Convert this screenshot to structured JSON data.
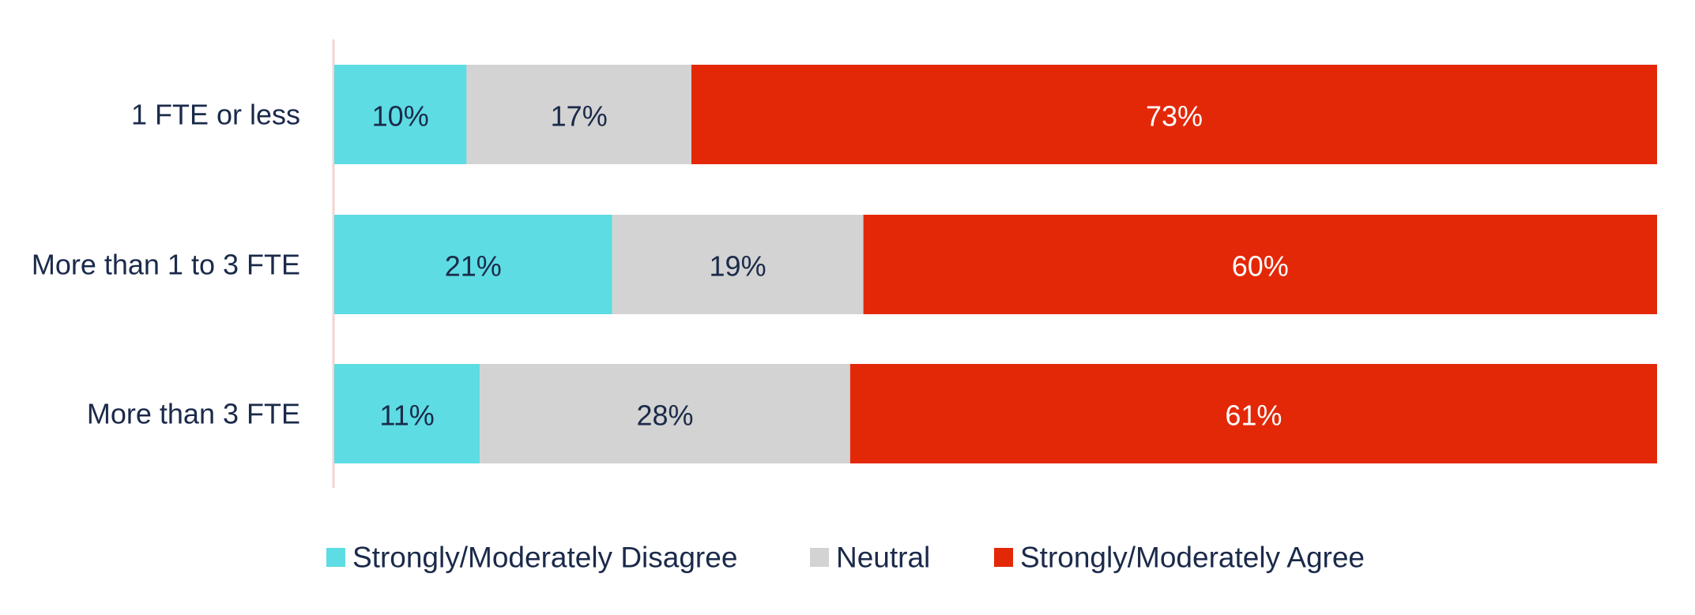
{
  "chart_data": {
    "type": "bar",
    "orientation": "horizontal",
    "stacked": true,
    "categories": [
      "1 FTE or less",
      "More than 1 to 3 FTE",
      "More than 3 FTE"
    ],
    "series": [
      {
        "name": "Strongly/Moderately Disagree",
        "values": [
          10,
          21,
          11
        ],
        "labels": [
          "10%",
          "21%",
          "11%"
        ],
        "color": "#5ddce3",
        "label_color": "#1b2a4a"
      },
      {
        "name": "Neutral",
        "values": [
          17,
          19,
          28
        ],
        "labels": [
          "17%",
          "19%",
          "28%"
        ],
        "color": "#d2d3d2",
        "label_color": "#1b2a4a"
      },
      {
        "name": "Strongly/Moderately Agree",
        "values": [
          73,
          60,
          61
        ],
        "labels": [
          "73%",
          "60%",
          "61%"
        ],
        "color": "#e32808",
        "label_color": "#ffffff"
      }
    ],
    "xlim": [
      0,
      100
    ],
    "grid": false,
    "legend_position": "bottom",
    "title": "",
    "xlabel": "",
    "ylabel": ""
  }
}
